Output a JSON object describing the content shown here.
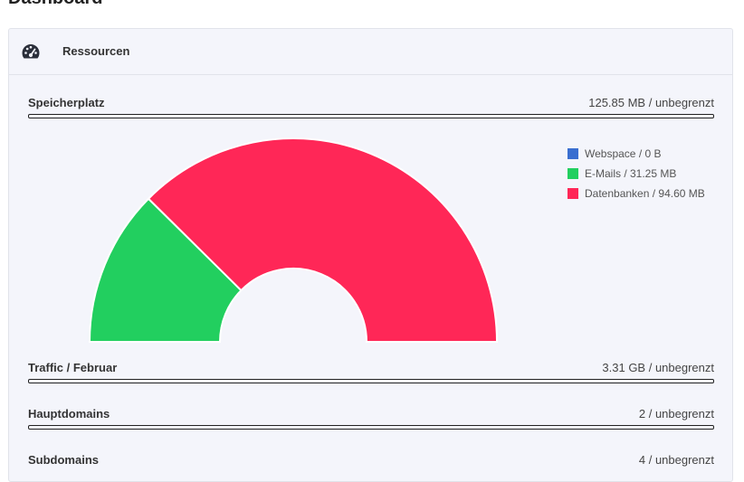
{
  "page": {
    "title": "Dashboard"
  },
  "panel": {
    "title": "Ressourcen",
    "icon": "tachometer-icon"
  },
  "resources": [
    {
      "label": "Speicherplatz",
      "value": "125.85 MB / unbegrenzt",
      "fraction": 0
    },
    {
      "label": "Traffic / Februar",
      "value": "3.31 GB / unbegrenzt",
      "fraction": 0
    },
    {
      "label": "Hauptdomains",
      "value": "2 / unbegrenzt",
      "fraction": 0
    },
    {
      "label": "Subdomains",
      "value": "4 / unbegrenzt",
      "fraction": 0
    }
  ],
  "chart_data": {
    "type": "pie",
    "variant": "half-doughnut",
    "categories": [
      "Webspace / 0 B",
      "E-Mails / 31.25 MB",
      "Datenbanken / 94.60 MB"
    ],
    "values": [
      0,
      31.25,
      94.6
    ],
    "unit": "MB",
    "colors": [
      "#3a6fd0",
      "#22cf5f",
      "#ff2757"
    ],
    "legend": "top-right"
  }
}
